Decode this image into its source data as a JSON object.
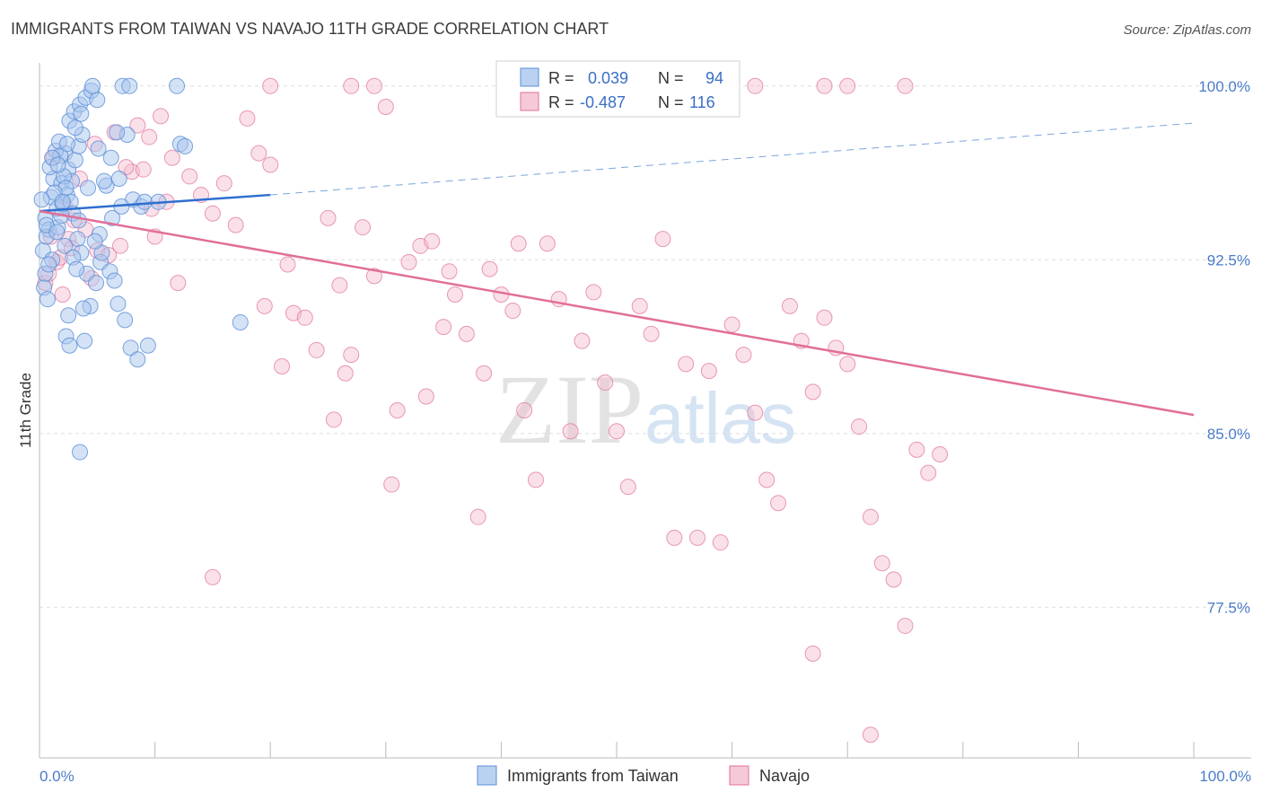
{
  "title": "IMMIGRANTS FROM TAIWAN VS NAVAJO 11TH GRADE CORRELATION CHART",
  "source": "Source: ZipAtlas.com",
  "watermark": {
    "zip": "ZIP",
    "atlas": "atlas"
  },
  "colors": {
    "blue": "#5b8fd6",
    "blue_fill": "#a9c6ee",
    "pink": "#e16f99",
    "pink_fill": "#f4bccf",
    "tick": "#4a7cc9",
    "grid": "#dddddd"
  },
  "legend": {
    "rows": [
      {
        "r_label": "R =",
        "r_value": "0.039",
        "n_label": "N =",
        "n_value": "94"
      },
      {
        "r_label": "R =",
        "r_value": "-0.487",
        "n_label": "N =",
        "n_value": "116"
      }
    ]
  },
  "bottom_legend": [
    "Immigrants from Taiwan",
    "Navajo"
  ],
  "chart_data": {
    "type": "scatter",
    "xlabel": "",
    "ylabel": "11th Grade",
    "x_tick_labels": [
      "0.0%",
      "100.0%"
    ],
    "y_tick_labels": [
      "100.0%",
      "92.5%",
      "85.0%",
      "77.5%"
    ],
    "xlim": [
      0,
      100
    ],
    "ylim": [
      71.0,
      101.0
    ],
    "y_ticks": [
      100.0,
      92.5,
      85.0,
      77.5
    ],
    "legend_position": "top-center",
    "series": [
      {
        "name": "Immigrants from Taiwan",
        "r": 0.039,
        "n": 94,
        "trend": {
          "x0": 0,
          "y0": 94.6,
          "x1": 20,
          "y1": 95.3,
          "dashed_to_x": 100,
          "dashed_to_y": 98.4
        },
        "points": [
          [
            0.5,
            94.3
          ],
          [
            0.8,
            93.8
          ],
          [
            1.0,
            95.2
          ],
          [
            1.2,
            96.0
          ],
          [
            0.3,
            92.9
          ],
          [
            0.6,
            93.5
          ],
          [
            1.5,
            94.7
          ],
          [
            1.9,
            95.8
          ],
          [
            2.2,
            97.1
          ],
          [
            2.5,
            96.4
          ],
          [
            0.4,
            91.3
          ],
          [
            0.7,
            90.8
          ],
          [
            1.1,
            92.5
          ],
          [
            1.6,
            93.9
          ],
          [
            2.0,
            94.9
          ],
          [
            2.4,
            95.3
          ],
          [
            2.8,
            95.9
          ],
          [
            3.1,
            96.8
          ],
          [
            3.4,
            97.4
          ],
          [
            3.7,
            97.9
          ],
          [
            2.6,
            98.5
          ],
          [
            3.0,
            98.9
          ],
          [
            3.5,
            99.2
          ],
          [
            4.0,
            99.5
          ],
          [
            4.5,
            99.8
          ],
          [
            5.0,
            99.4
          ],
          [
            4.6,
            100.0
          ],
          [
            7.2,
            100.0
          ],
          [
            7.8,
            100.0
          ],
          [
            11.9,
            100.0
          ],
          [
            1.4,
            97.2
          ],
          [
            1.7,
            97.6
          ],
          [
            2.1,
            96.1
          ],
          [
            2.3,
            95.6
          ],
          [
            2.7,
            95.0
          ],
          [
            2.9,
            94.5
          ],
          [
            3.3,
            93.4
          ],
          [
            3.6,
            92.8
          ],
          [
            4.1,
            91.9
          ],
          [
            4.4,
            90.5
          ],
          [
            3.8,
            90.4
          ],
          [
            2.5,
            90.1
          ],
          [
            2.3,
            89.2
          ],
          [
            2.6,
            88.8
          ],
          [
            3.9,
            89.0
          ],
          [
            4.9,
            91.5
          ],
          [
            5.3,
            92.4
          ],
          [
            6.1,
            92.0
          ],
          [
            6.5,
            91.6
          ],
          [
            6.8,
            90.6
          ],
          [
            7.4,
            89.9
          ],
          [
            7.9,
            88.7
          ],
          [
            8.5,
            88.2
          ],
          [
            9.4,
            88.8
          ],
          [
            6.2,
            96.9
          ],
          [
            7.6,
            97.9
          ],
          [
            8.1,
            95.1
          ],
          [
            8.8,
            94.8
          ],
          [
            9.1,
            95.0
          ],
          [
            10.3,
            95.0
          ],
          [
            12.2,
            97.5
          ],
          [
            12.6,
            97.4
          ],
          [
            6.3,
            94.3
          ],
          [
            7.1,
            94.8
          ],
          [
            5.2,
            93.6
          ],
          [
            5.8,
            95.7
          ],
          [
            6.7,
            98.0
          ],
          [
            5.6,
            95.9
          ],
          [
            1.8,
            97.0
          ],
          [
            0.9,
            96.5
          ],
          [
            1.3,
            95.4
          ],
          [
            0.2,
            95.1
          ],
          [
            0.6,
            94.0
          ],
          [
            1.9,
            94.4
          ],
          [
            1.5,
            93.7
          ],
          [
            2.2,
            93.1
          ],
          [
            2.9,
            92.6
          ],
          [
            3.2,
            92.1
          ],
          [
            0.5,
            91.9
          ],
          [
            0.8,
            92.3
          ],
          [
            4.2,
            95.6
          ],
          [
            3.4,
            94.2
          ],
          [
            2.0,
            95.0
          ],
          [
            1.1,
            96.9
          ],
          [
            1.6,
            96.6
          ],
          [
            2.4,
            97.5
          ],
          [
            3.1,
            98.2
          ],
          [
            3.6,
            98.8
          ],
          [
            5.1,
            97.3
          ],
          [
            6.9,
            96.0
          ],
          [
            17.4,
            89.8
          ],
          [
            3.5,
            84.2
          ],
          [
            5.4,
            92.8
          ],
          [
            4.8,
            93.3
          ]
        ]
      },
      {
        "name": "Navajo",
        "r": -0.487,
        "n": 116,
        "trend": {
          "x0": 0,
          "y0": 94.6,
          "x1": 100,
          "y1": 85.8
        },
        "points": [
          [
            1.0,
            93.5
          ],
          [
            1.5,
            92.4
          ],
          [
            2.0,
            91.0
          ],
          [
            2.5,
            93.4
          ],
          [
            3.0,
            94.2
          ],
          [
            4.0,
            93.8
          ],
          [
            4.5,
            91.7
          ],
          [
            5.0,
            92.9
          ],
          [
            6.0,
            92.7
          ],
          [
            7.0,
            93.1
          ],
          [
            8.0,
            96.3
          ],
          [
            9.0,
            96.4
          ],
          [
            10.0,
            93.5
          ],
          [
            11.0,
            95.0
          ],
          [
            12.0,
            91.5
          ],
          [
            13.0,
            96.1
          ],
          [
            14.0,
            95.3
          ],
          [
            15.0,
            94.5
          ],
          [
            16.0,
            95.8
          ],
          [
            17.0,
            94.0
          ],
          [
            18.0,
            98.6
          ],
          [
            19.0,
            97.1
          ],
          [
            20.0,
            96.6
          ],
          [
            21.0,
            87.9
          ],
          [
            22.0,
            90.2
          ],
          [
            23.0,
            90.0
          ],
          [
            24.0,
            88.6
          ],
          [
            25.0,
            94.3
          ],
          [
            26.0,
            91.4
          ],
          [
            27.0,
            88.4
          ],
          [
            28.0,
            93.9
          ],
          [
            29.0,
            91.8
          ],
          [
            30.0,
            99.1
          ],
          [
            31.0,
            86.0
          ],
          [
            32.0,
            92.4
          ],
          [
            33.0,
            93.1
          ],
          [
            34.0,
            93.3
          ],
          [
            35.0,
            89.6
          ],
          [
            36.0,
            91.0
          ],
          [
            37.0,
            89.3
          ],
          [
            38.0,
            81.4
          ],
          [
            39.0,
            92.1
          ],
          [
            40.0,
            91.0
          ],
          [
            41.0,
            90.3
          ],
          [
            42.0,
            86.0
          ],
          [
            43.0,
            83.0
          ],
          [
            44.0,
            93.2
          ],
          [
            45.0,
            90.8
          ],
          [
            46.0,
            85.1
          ],
          [
            47.0,
            89.0
          ],
          [
            48.0,
            91.1
          ],
          [
            49.0,
            87.2
          ],
          [
            50.0,
            85.1
          ],
          [
            51.0,
            82.7
          ],
          [
            52.0,
            90.5
          ],
          [
            53.0,
            89.3
          ],
          [
            54.0,
            93.4
          ],
          [
            55.0,
            80.5
          ],
          [
            56.0,
            88.0
          ],
          [
            57.0,
            80.5
          ],
          [
            58.0,
            87.7
          ],
          [
            59.0,
            80.3
          ],
          [
            60.0,
            89.7
          ],
          [
            61.0,
            88.4
          ],
          [
            62.0,
            85.9
          ],
          [
            63.0,
            83.0
          ],
          [
            64.0,
            82.0
          ],
          [
            65.0,
            90.5
          ],
          [
            66.0,
            89.0
          ],
          [
            67.0,
            86.8
          ],
          [
            68.0,
            90.0
          ],
          [
            69.0,
            88.7
          ],
          [
            70.0,
            88.0
          ],
          [
            71.0,
            85.3
          ],
          [
            72.0,
            81.4
          ],
          [
            73.0,
            79.4
          ],
          [
            74.0,
            78.7
          ],
          [
            75.0,
            76.7
          ],
          [
            76.0,
            84.3
          ],
          [
            77.0,
            83.3
          ],
          [
            78.0,
            84.1
          ],
          [
            1.2,
            96.9
          ],
          [
            2.2,
            94.8
          ],
          [
            3.5,
            96.0
          ],
          [
            4.8,
            97.5
          ],
          [
            6.5,
            98.0
          ],
          [
            7.5,
            96.5
          ],
          [
            8.5,
            98.3
          ],
          [
            9.5,
            97.8
          ],
          [
            10.5,
            98.7
          ],
          [
            11.5,
            96.9
          ],
          [
            19.5,
            90.5
          ],
          [
            21.5,
            92.3
          ],
          [
            25.5,
            85.6
          ],
          [
            26.5,
            87.6
          ],
          [
            30.5,
            82.8
          ],
          [
            33.5,
            86.6
          ],
          [
            35.5,
            92.0
          ],
          [
            38.5,
            87.6
          ],
          [
            41.5,
            93.2
          ],
          [
            53.0,
            100.0
          ],
          [
            62.0,
            100.0
          ],
          [
            68.0,
            100.0
          ],
          [
            75.0,
            100.0
          ],
          [
            67.0,
            75.5
          ],
          [
            72.0,
            72.0
          ],
          [
            20.0,
            100.0
          ],
          [
            27.0,
            100.0
          ],
          [
            29.0,
            100.0
          ],
          [
            59.0,
            100.0
          ],
          [
            70.0,
            100.0
          ],
          [
            0.5,
            91.5
          ],
          [
            0.8,
            91.9
          ],
          [
            1.8,
            92.6
          ],
          [
            2.8,
            93.0
          ],
          [
            9.7,
            94.7
          ],
          [
            15.0,
            78.8
          ]
        ]
      }
    ]
  }
}
